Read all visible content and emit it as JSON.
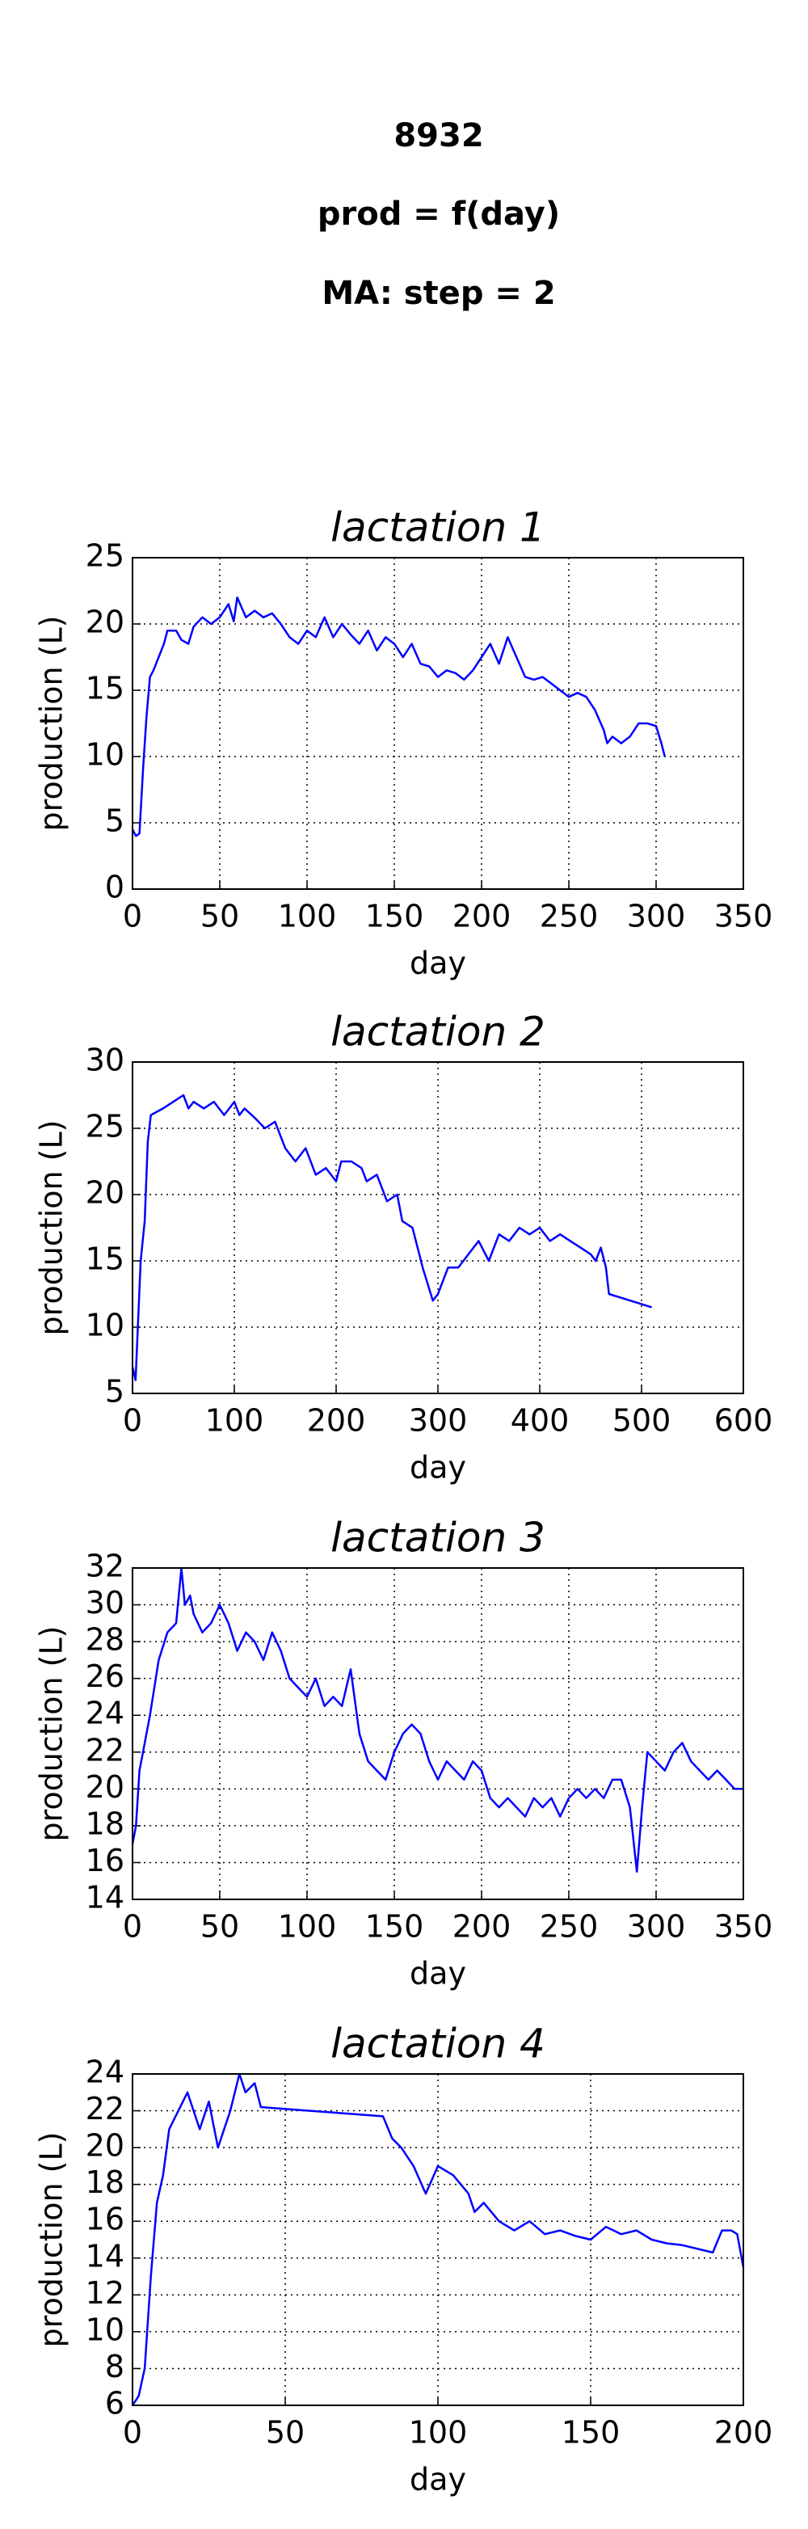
{
  "header": {
    "lines": [
      "8932",
      "prod = f(day)",
      "MA: step = 2"
    ]
  },
  "chart_data": [
    {
      "type": "line",
      "title": "lactation 1",
      "xlabel": "day",
      "ylabel": "production (L)",
      "color": "#0000ff",
      "grid": true,
      "xlim": [
        0,
        350
      ],
      "xticks": [
        0,
        50,
        100,
        150,
        200,
        250,
        300,
        350
      ],
      "ylim": [
        0,
        25
      ],
      "yticks": [
        0,
        5,
        10,
        15,
        20,
        25
      ],
      "x": [
        0,
        2,
        4,
        6,
        8,
        10,
        12,
        15,
        18,
        20,
        25,
        28,
        32,
        35,
        40,
        45,
        50,
        55,
        58,
        60,
        65,
        70,
        75,
        80,
        85,
        90,
        95,
        100,
        105,
        110,
        115,
        120,
        125,
        130,
        135,
        140,
        145,
        150,
        155,
        160,
        165,
        170,
        175,
        180,
        185,
        190,
        195,
        200,
        205,
        210,
        215,
        220,
        225,
        230,
        235,
        240,
        245,
        250,
        255,
        260,
        265,
        270,
        272,
        275,
        280,
        285,
        290,
        295,
        300,
        303,
        305
      ],
      "values": [
        4.5,
        4,
        4.2,
        9,
        13,
        16,
        16.5,
        17.5,
        18.5,
        19.5,
        19.5,
        18.8,
        18.5,
        19.8,
        20.5,
        20,
        20.5,
        21.5,
        20.2,
        22,
        20.5,
        21,
        20.5,
        20.8,
        20,
        19,
        18.5,
        19.5,
        19,
        20.5,
        19,
        20,
        19.2,
        18.5,
        19.5,
        18,
        19,
        18.5,
        17.5,
        18.5,
        17,
        16.8,
        16,
        16.5,
        16.3,
        15.8,
        16.5,
        17.5,
        18.5,
        17,
        19,
        17.5,
        16,
        15.8,
        16,
        15.5,
        15,
        14.5,
        14.8,
        14.5,
        13.5,
        12,
        11,
        11.5,
        11,
        11.5,
        12.5,
        12.5,
        12.3,
        11,
        10
      ]
    },
    {
      "type": "line",
      "title": "lactation 2",
      "xlabel": "day",
      "ylabel": "production (L)",
      "color": "#0000ff",
      "grid": true,
      "xlim": [
        0,
        600
      ],
      "xticks": [
        0,
        100,
        200,
        300,
        400,
        500,
        600
      ],
      "ylim": [
        5,
        30
      ],
      "yticks": [
        5,
        10,
        15,
        20,
        25,
        30
      ],
      "x": [
        0,
        3,
        8,
        12,
        15,
        18,
        30,
        40,
        50,
        55,
        60,
        70,
        80,
        90,
        100,
        105,
        110,
        120,
        130,
        140,
        150,
        160,
        170,
        180,
        190,
        200,
        205,
        215,
        225,
        230,
        240,
        250,
        260,
        265,
        275,
        285,
        295,
        300,
        310,
        320,
        330,
        340,
        350,
        360,
        370,
        380,
        390,
        400,
        410,
        420,
        430,
        440,
        450,
        455,
        460,
        465,
        468,
        510
      ],
      "values": [
        7,
        6,
        15,
        18,
        24,
        26,
        26.5,
        27,
        27.5,
        26.5,
        27,
        26.5,
        27,
        26,
        27,
        26,
        26.5,
        25.8,
        25,
        25.5,
        23.5,
        22.5,
        23.5,
        21.5,
        22,
        21,
        22.5,
        22.5,
        22,
        21,
        21.5,
        19.5,
        20,
        18,
        17.5,
        14.5,
        12,
        12.5,
        14.5,
        14.5,
        15.5,
        16.5,
        15,
        17,
        16.5,
        17.5,
        17,
        17.5,
        16.5,
        17,
        16.5,
        16,
        15.5,
        15,
        16,
        14.5,
        12.5,
        11.5
      ]
    },
    {
      "type": "line",
      "title": "lactation 3",
      "xlabel": "day",
      "ylabel": "production (L)",
      "color": "#0000ff",
      "grid": true,
      "xlim": [
        0,
        350
      ],
      "xticks": [
        0,
        50,
        100,
        150,
        200,
        250,
        300,
        350
      ],
      "ylim": [
        14,
        32
      ],
      "yticks": [
        14,
        16,
        18,
        20,
        22,
        24,
        26,
        28,
        30,
        32
      ],
      "x": [
        0,
        2,
        4,
        6,
        10,
        15,
        20,
        25,
        28,
        30,
        33,
        35,
        40,
        45,
        50,
        55,
        60,
        65,
        70,
        75,
        80,
        85,
        90,
        95,
        100,
        105,
        110,
        115,
        120,
        125,
        130,
        135,
        140,
        145,
        150,
        155,
        160,
        165,
        170,
        175,
        180,
        185,
        190,
        195,
        200,
        205,
        210,
        215,
        220,
        225,
        230,
        235,
        240,
        245,
        250,
        255,
        260,
        265,
        270,
        275,
        280,
        285,
        289,
        292,
        295,
        300,
        305,
        310,
        315,
        320,
        325,
        330,
        335,
        340,
        345,
        350
      ],
      "values": [
        17,
        18,
        21,
        22,
        24,
        27,
        28.5,
        29,
        32,
        30,
        30.5,
        29.5,
        28.5,
        29,
        30,
        29,
        27.5,
        28.5,
        28,
        27,
        28.5,
        27.5,
        26,
        25.5,
        25,
        26,
        24.5,
        25,
        24.5,
        26.5,
        23,
        21.5,
        21,
        20.5,
        22,
        23,
        23.5,
        23,
        21.5,
        20.5,
        21.5,
        21,
        20.5,
        21.5,
        21,
        19.5,
        19,
        19.5,
        19,
        18.5,
        19.5,
        19,
        19.5,
        18.5,
        19.5,
        20,
        19.5,
        20,
        19.5,
        20.5,
        20.5,
        19,
        15.5,
        19,
        22,
        21.5,
        21,
        22,
        22.5,
        21.5,
        21,
        20.5,
        21,
        20.5,
        20,
        20
      ]
    },
    {
      "type": "line",
      "title": "lactation 4",
      "xlabel": "day",
      "ylabel": "production (L)",
      "color": "#0000ff",
      "grid": true,
      "xlim": [
        0,
        200
      ],
      "xticks": [
        0,
        50,
        100,
        150,
        200
      ],
      "ylim": [
        6,
        24
      ],
      "yticks": [
        6,
        8,
        10,
        12,
        14,
        16,
        18,
        20,
        22,
        24
      ],
      "x": [
        0,
        2,
        4,
        6,
        8,
        10,
        12,
        15,
        18,
        20,
        22,
        25,
        28,
        30,
        32,
        35,
        37,
        40,
        42,
        82,
        85,
        88,
        92,
        96,
        100,
        105,
        110,
        112,
        115,
        120,
        125,
        130,
        135,
        140,
        145,
        150,
        155,
        160,
        165,
        170,
        175,
        180,
        185,
        190,
        193,
        196,
        198,
        200
      ],
      "values": [
        6,
        6.5,
        8,
        13,
        17,
        18.5,
        21,
        22,
        23,
        22,
        21,
        22.5,
        20,
        21,
        22,
        24,
        23,
        23.5,
        22.2,
        21.7,
        20.5,
        20,
        19,
        17.5,
        19,
        18.5,
        17.5,
        16.5,
        17,
        16,
        15.5,
        16,
        15.3,
        15.5,
        15.2,
        15,
        15.7,
        15.3,
        15.5,
        15,
        14.8,
        14.7,
        14.5,
        14.3,
        15.5,
        15.5,
        15.3,
        13.5
      ]
    }
  ]
}
